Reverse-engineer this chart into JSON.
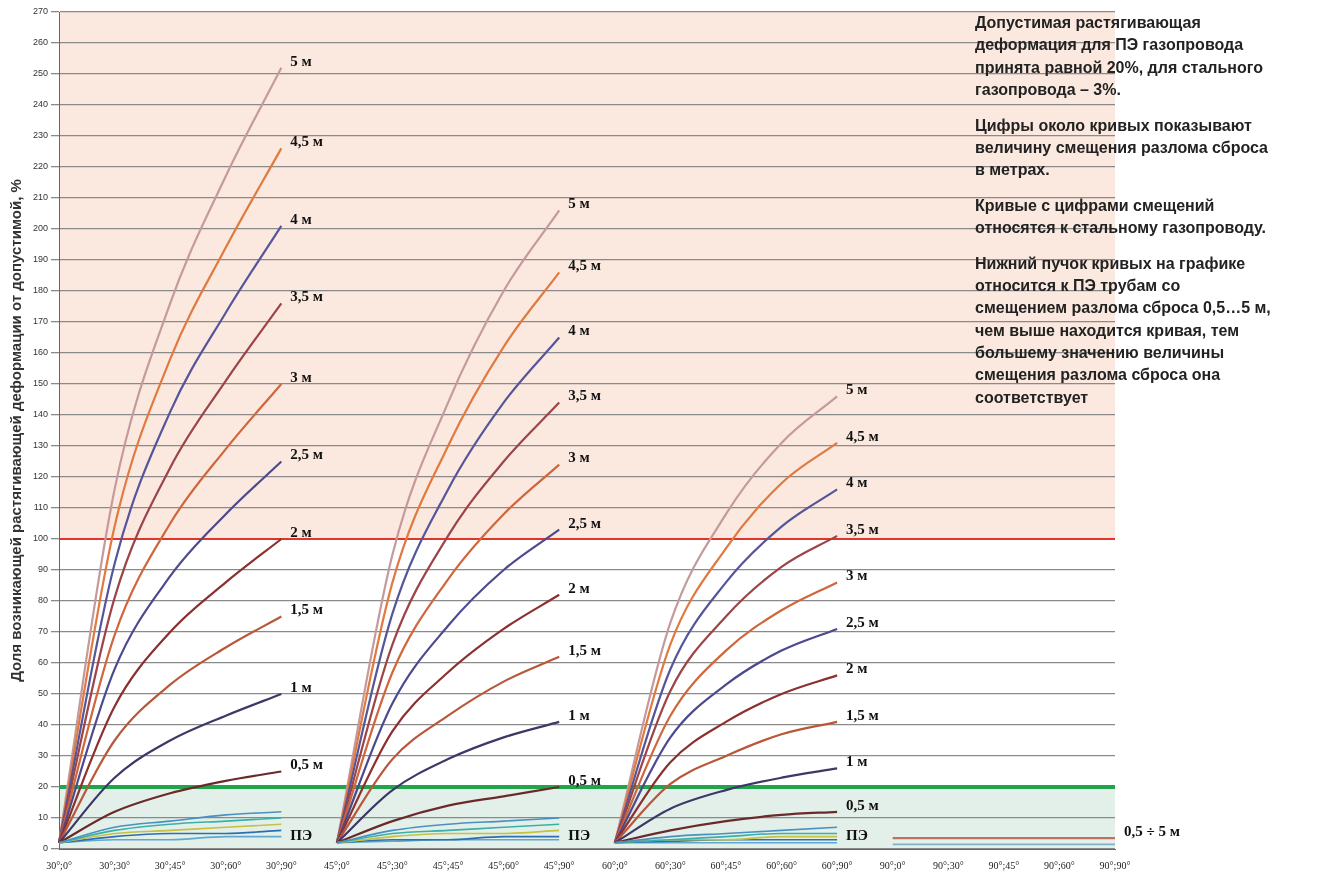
{
  "chart_data": {
    "type": "line",
    "ylabel": "Доля возникающей растягивающей деформации от допустимой, %",
    "categories": [
      "30°;0°",
      "30°;30°",
      "30°;45°",
      "30°;60°",
      "30°;90°",
      "45°;0°",
      "45°;30°",
      "45°;45°",
      "45°;60°",
      "45°;90°",
      "60°;0°",
      "60°;30°",
      "60°;45°",
      "60°;60°",
      "60°;90°",
      "90°;0°",
      "90°;30°",
      "90°;45°",
      "90°;60°",
      "90°;90°"
    ],
    "ylim": [
      0,
      270
    ],
    "yticks": [
      0,
      10,
      20,
      30,
      40,
      50,
      60,
      70,
      80,
      90,
      100,
      110,
      120,
      130,
      140,
      150,
      160,
      170,
      180,
      190,
      200,
      210,
      220,
      230,
      240,
      250,
      260,
      270
    ],
    "grid": "y",
    "legend": false,
    "marker": "none",
    "bands": [
      {
        "axis": "y",
        "from": 100,
        "to": 270,
        "color": "#fbe9df"
      },
      {
        "axis": "y",
        "from": 0,
        "to": 20,
        "color": "#e3f0ea"
      }
    ],
    "ref_lines": [
      {
        "axis": "y",
        "value": 100,
        "color": "#e0352b"
      },
      {
        "axis": "y",
        "value": 20,
        "color": "#1fa64a"
      }
    ],
    "annotations": [
      "Допустимая растягивающая деформация для ПЭ газопровода принята равной 20%, для стального газопровода – 3%.",
      "Цифры около кривых показывают величину смещения разлома сброса в метрах.",
      "Кривые с цифрами смещений относятся к стальному газопроводу.",
      "Нижний пучок кривых на графике относится к ПЭ трубам со смещением разлома сброса 0,5…5 м, чем выше находится кривая, тем большему значению величины смещения разлома сброса она соответствует",
      {
        "text": "ПЭ",
        "x": "30°;90°",
        "y": 3
      },
      {
        "text": "ПЭ",
        "x": "45°;90°",
        "y": 3
      },
      {
        "text": "ПЭ",
        "x": "60°;90°",
        "y": 3
      }
    ],
    "series": [
      {
        "color": "#4a90c0",
        "values": [
          2,
          7,
          9,
          11,
          12,
          null,
          null,
          null,
          null,
          null,
          null,
          null,
          null,
          null,
          null,
          null,
          null,
          null,
          null,
          null
        ]
      },
      {
        "color": "#3ab0a8",
        "values": [
          2,
          6,
          8,
          9,
          10,
          null,
          null,
          null,
          null,
          null,
          null,
          null,
          null,
          null,
          null,
          null,
          null,
          null,
          null,
          null
        ]
      },
      {
        "color": "#c8c040",
        "values": [
          2,
          5,
          6,
          7,
          8,
          null,
          null,
          null,
          null,
          null,
          null,
          null,
          null,
          null,
          null,
          null,
          null,
          null,
          null,
          null
        ]
      },
      {
        "color": "#2a70b0",
        "values": [
          2,
          4,
          5,
          5,
          6,
          null,
          null,
          null,
          null,
          null,
          null,
          null,
          null,
          null,
          null,
          null,
          null,
          null,
          null,
          null
        ]
      },
      {
        "color": "#60a8d0",
        "values": [
          2,
          3,
          3,
          4,
          4,
          null,
          null,
          null,
          null,
          null,
          null,
          null,
          null,
          null,
          null,
          null,
          null,
          null,
          null,
          null
        ]
      },
      {
        "color": "#4a90c0",
        "values": [
          null,
          null,
          null,
          null,
          null,
          2,
          6,
          8,
          9,
          10,
          null,
          null,
          null,
          null,
          null,
          null,
          null,
          null,
          null,
          null
        ]
      },
      {
        "color": "#3ab0a8",
        "values": [
          null,
          null,
          null,
          null,
          null,
          2,
          5,
          6,
          7,
          8,
          null,
          null,
          null,
          null,
          null,
          null,
          null,
          null,
          null,
          null
        ]
      },
      {
        "color": "#c8c040",
        "values": [
          null,
          null,
          null,
          null,
          null,
          2,
          4,
          5,
          5,
          6,
          null,
          null,
          null,
          null,
          null,
          null,
          null,
          null,
          null,
          null
        ]
      },
      {
        "color": "#2a70b0",
        "values": [
          null,
          null,
          null,
          null,
          null,
          2,
          3,
          3,
          4,
          4,
          null,
          null,
          null,
          null,
          null,
          null,
          null,
          null,
          null,
          null
        ]
      },
      {
        "color": "#60a8d0",
        "values": [
          null,
          null,
          null,
          null,
          null,
          2,
          2.5,
          3,
          3,
          3,
          null,
          null,
          null,
          null,
          null,
          null,
          null,
          null,
          null,
          null
        ]
      },
      {
        "color": "#4a90c0",
        "values": [
          null,
          null,
          null,
          null,
          null,
          null,
          null,
          null,
          null,
          null,
          2,
          4,
          5,
          6,
          7,
          null,
          null,
          null,
          null,
          null
        ]
      },
      {
        "color": "#3ab0a8",
        "values": [
          null,
          null,
          null,
          null,
          null,
          null,
          null,
          null,
          null,
          null,
          2,
          3,
          4,
          5,
          5,
          null,
          null,
          null,
          null,
          null
        ]
      },
      {
        "color": "#c8c040",
        "values": [
          null,
          null,
          null,
          null,
          null,
          null,
          null,
          null,
          null,
          null,
          2,
          3,
          3,
          4,
          4,
          null,
          null,
          null,
          null,
          null
        ]
      },
      {
        "color": "#2a70b0",
        "values": [
          null,
          null,
          null,
          null,
          null,
          null,
          null,
          null,
          null,
          null,
          2,
          2.5,
          3,
          3,
          3,
          null,
          null,
          null,
          null,
          null
        ]
      },
      {
        "color": "#60a8d0",
        "values": [
          null,
          null,
          null,
          null,
          null,
          null,
          null,
          null,
          null,
          null,
          2,
          2,
          2,
          2,
          2,
          null,
          null,
          null,
          null,
          null
        ]
      },
      {
        "color": "#80b0c8",
        "values": [
          null,
          null,
          null,
          null,
          null,
          null,
          null,
          null,
          null,
          null,
          null,
          null,
          null,
          null,
          null,
          1.5,
          1.5,
          1.5,
          1.5,
          1.5
        ]
      },
      {
        "name": "0,5 м",
        "color": "#6b2a2a",
        "values": [
          2,
          12,
          18,
          22,
          25,
          null,
          null,
          null,
          null,
          null,
          null,
          null,
          null,
          null,
          null,
          null,
          null,
          null,
          null,
          null
        ]
      },
      {
        "name": "1 м",
        "color": "#3d3868",
        "values": [
          2,
          23,
          35,
          43,
          50,
          null,
          null,
          null,
          null,
          null,
          null,
          null,
          null,
          null,
          null,
          null,
          null,
          null,
          null,
          null
        ]
      },
      {
        "name": "1,5 м",
        "color": "#b8573a",
        "values": [
          2,
          35,
          53,
          65,
          75,
          null,
          null,
          null,
          null,
          null,
          null,
          null,
          null,
          null,
          null,
          null,
          null,
          null,
          null,
          null
        ]
      },
      {
        "name": "2 м",
        "color": "#8c2f2f",
        "values": [
          2,
          46,
          70,
          86,
          100,
          null,
          null,
          null,
          null,
          null,
          null,
          null,
          null,
          null,
          null,
          null,
          null,
          null,
          null,
          null
        ]
      },
      {
        "name": "2,5 м",
        "color": "#4b4a8e",
        "values": [
          2,
          58,
          88,
          108,
          125,
          null,
          null,
          null,
          null,
          null,
          null,
          null,
          null,
          null,
          null,
          null,
          null,
          null,
          null,
          null
        ]
      },
      {
        "name": "3 м",
        "color": "#d0663c",
        "values": [
          2,
          69,
          105,
          129,
          150,
          null,
          null,
          null,
          null,
          null,
          null,
          null,
          null,
          null,
          null,
          null,
          null,
          null,
          null,
          null
        ]
      },
      {
        "name": "3,5 м",
        "color": "#9c4448",
        "values": [
          2,
          81,
          123,
          151,
          176,
          null,
          null,
          null,
          null,
          null,
          null,
          null,
          null,
          null,
          null,
          null,
          null,
          null,
          null,
          null
        ]
      },
      {
        "name": "4 м",
        "color": "#55559a",
        "values": [
          2,
          92,
          141,
          173,
          201,
          null,
          null,
          null,
          null,
          null,
          null,
          null,
          null,
          null,
          null,
          null,
          null,
          null,
          null,
          null
        ]
      },
      {
        "name": "4,5 м",
        "color": "#e07a40",
        "values": [
          2,
          104,
          158,
          194,
          226,
          null,
          null,
          null,
          null,
          null,
          null,
          null,
          null,
          null,
          null,
          null,
          null,
          null,
          null,
          null
        ]
      },
      {
        "name": "5 м",
        "color": "#c49a9c",
        "values": [
          2,
          116,
          176,
          217,
          252,
          null,
          null,
          null,
          null,
          null,
          null,
          null,
          null,
          null,
          null,
          null,
          null,
          null,
          null,
          null
        ]
      },
      {
        "name": "0,5 м",
        "color": "#6b2a2a",
        "values": [
          null,
          null,
          null,
          null,
          null,
          2,
          9,
          14,
          17,
          20,
          null,
          null,
          null,
          null,
          null,
          null,
          null,
          null,
          null,
          null
        ]
      },
      {
        "name": "1 м",
        "color": "#3d3868",
        "values": [
          null,
          null,
          null,
          null,
          null,
          2,
          19,
          29,
          36,
          41,
          null,
          null,
          null,
          null,
          null,
          null,
          null,
          null,
          null,
          null
        ]
      },
      {
        "name": "1,5 м",
        "color": "#b8573a",
        "values": [
          null,
          null,
          null,
          null,
          null,
          2,
          29,
          43,
          54,
          62,
          null,
          null,
          null,
          null,
          null,
          null,
          null,
          null,
          null,
          null
        ]
      },
      {
        "name": "2 м",
        "color": "#8c2f2f",
        "values": [
          null,
          null,
          null,
          null,
          null,
          2,
          38,
          57,
          71,
          82,
          null,
          null,
          null,
          null,
          null,
          null,
          null,
          null,
          null,
          null
        ]
      },
      {
        "name": "2,5 м",
        "color": "#4b4a8e",
        "values": [
          null,
          null,
          null,
          null,
          null,
          2,
          47,
          72,
          90,
          103,
          null,
          null,
          null,
          null,
          null,
          null,
          null,
          null,
          null,
          null
        ]
      },
      {
        "name": "3 м",
        "color": "#d0663c",
        "values": [
          null,
          null,
          null,
          null,
          null,
          2,
          57,
          87,
          108,
          124,
          null,
          null,
          null,
          null,
          null,
          null,
          null,
          null,
          null,
          null
        ]
      },
      {
        "name": "3,5 м",
        "color": "#9c4448",
        "values": [
          null,
          null,
          null,
          null,
          null,
          2,
          66,
          101,
          125,
          144,
          null,
          null,
          null,
          null,
          null,
          null,
          null,
          null,
          null,
          null
        ]
      },
      {
        "name": "4 м",
        "color": "#55559a",
        "values": [
          null,
          null,
          null,
          null,
          null,
          2,
          76,
          116,
          144,
          165,
          null,
          null,
          null,
          null,
          null,
          null,
          null,
          null,
          null,
          null
        ]
      },
      {
        "name": "4,5 м",
        "color": "#e07a40",
        "values": [
          null,
          null,
          null,
          null,
          null,
          2,
          86,
          130,
          162,
          186,
          null,
          null,
          null,
          null,
          null,
          null,
          null,
          null,
          null,
          null
        ]
      },
      {
        "name": "5 м",
        "color": "#c49a9c",
        "values": [
          null,
          null,
          null,
          null,
          null,
          2,
          95,
          144,
          180,
          206,
          null,
          null,
          null,
          null,
          null,
          null,
          null,
          null,
          null,
          null
        ]
      },
      {
        "name": "0,5 м",
        "color": "#6b2a2a",
        "values": [
          null,
          null,
          null,
          null,
          null,
          null,
          null,
          null,
          null,
          null,
          2,
          6,
          9,
          11,
          12,
          null,
          null,
          null,
          null,
          null
        ]
      },
      {
        "name": "1 м",
        "color": "#3d3868",
        "values": [
          null,
          null,
          null,
          null,
          null,
          null,
          null,
          null,
          null,
          null,
          2,
          13,
          19,
          23,
          26,
          null,
          null,
          null,
          null,
          null
        ]
      },
      {
        "name": "1,5 м",
        "color": "#b8573a",
        "values": [
          null,
          null,
          null,
          null,
          null,
          null,
          null,
          null,
          null,
          null,
          2,
          21,
          30,
          37,
          41,
          null,
          null,
          null,
          null,
          null
        ]
      },
      {
        "name": "2 м",
        "color": "#8c2f2f",
        "values": [
          null,
          null,
          null,
          null,
          null,
          null,
          null,
          null,
          null,
          null,
          2,
          28,
          41,
          50,
          56,
          null,
          null,
          null,
          null,
          null
        ]
      },
      {
        "name": "2,5 м",
        "color": "#4b4a8e",
        "values": [
          null,
          null,
          null,
          null,
          null,
          null,
          null,
          null,
          null,
          null,
          2,
          36,
          53,
          64,
          71,
          null,
          null,
          null,
          null,
          null
        ]
      },
      {
        "name": "3 м",
        "color": "#d0663c",
        "values": [
          null,
          null,
          null,
          null,
          null,
          null,
          null,
          null,
          null,
          null,
          2,
          43,
          64,
          77,
          86,
          null,
          null,
          null,
          null,
          null
        ]
      },
      {
        "name": "3,5 м",
        "color": "#9c4448",
        "values": [
          null,
          null,
          null,
          null,
          null,
          null,
          null,
          null,
          null,
          null,
          2,
          51,
          75,
          91,
          101,
          null,
          null,
          null,
          null,
          null
        ]
      },
      {
        "name": "4 м",
        "color": "#55559a",
        "values": [
          null,
          null,
          null,
          null,
          null,
          null,
          null,
          null,
          null,
          null,
          2,
          58,
          86,
          104,
          116,
          null,
          null,
          null,
          null,
          null
        ]
      },
      {
        "name": "4,5 м",
        "color": "#e07a40",
        "values": [
          null,
          null,
          null,
          null,
          null,
          null,
          null,
          null,
          null,
          null,
          2,
          66,
          97,
          118,
          131,
          null,
          null,
          null,
          null,
          null
        ]
      },
      {
        "name": "5 м",
        "color": "#c49a9c",
        "values": [
          null,
          null,
          null,
          null,
          null,
          null,
          null,
          null,
          null,
          null,
          2,
          73,
          108,
          131,
          146,
          null,
          null,
          null,
          null,
          null
        ]
      },
      {
        "name": "0,5 ÷ 5 м",
        "color": "#c07060",
        "values": [
          null,
          null,
          null,
          null,
          null,
          null,
          null,
          null,
          null,
          null,
          null,
          null,
          null,
          null,
          null,
          3.5,
          3.5,
          3.5,
          3.5,
          3.5
        ]
      }
    ]
  }
}
